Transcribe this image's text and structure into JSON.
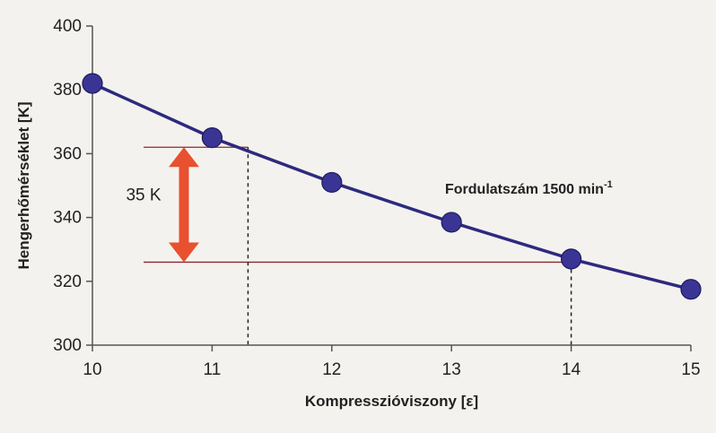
{
  "chart_data": {
    "type": "line",
    "xlabel": "Kompresszióviszony [ε]",
    "ylabel": "Hengerhőmérséklet [K]",
    "xlim": [
      10,
      15
    ],
    "ylim": [
      300,
      400
    ],
    "x_ticks": [
      10,
      11,
      12,
      13,
      14,
      15
    ],
    "y_ticks": [
      300,
      320,
      340,
      360,
      380,
      400
    ],
    "grid": false,
    "series": [
      {
        "x": [
          10,
          11,
          12,
          13,
          14,
          15
        ],
        "y": [
          382,
          365,
          351,
          338.5,
          327,
          317.5
        ],
        "color": "#2d2a7e",
        "marker_color": "#3a3594"
      }
    ],
    "annotations": {
      "operating_point": "Fordulatszám 1500 min",
      "operating_point_sup": "-1",
      "difference_label": "35 K",
      "difference_upper_y": 362,
      "difference_lower_y": 326,
      "difference_upper_x": 11.3,
      "difference_lower_x": 14,
      "arrow_color": "#e8502f",
      "reference_line_color": "#8b2a2a"
    }
  }
}
